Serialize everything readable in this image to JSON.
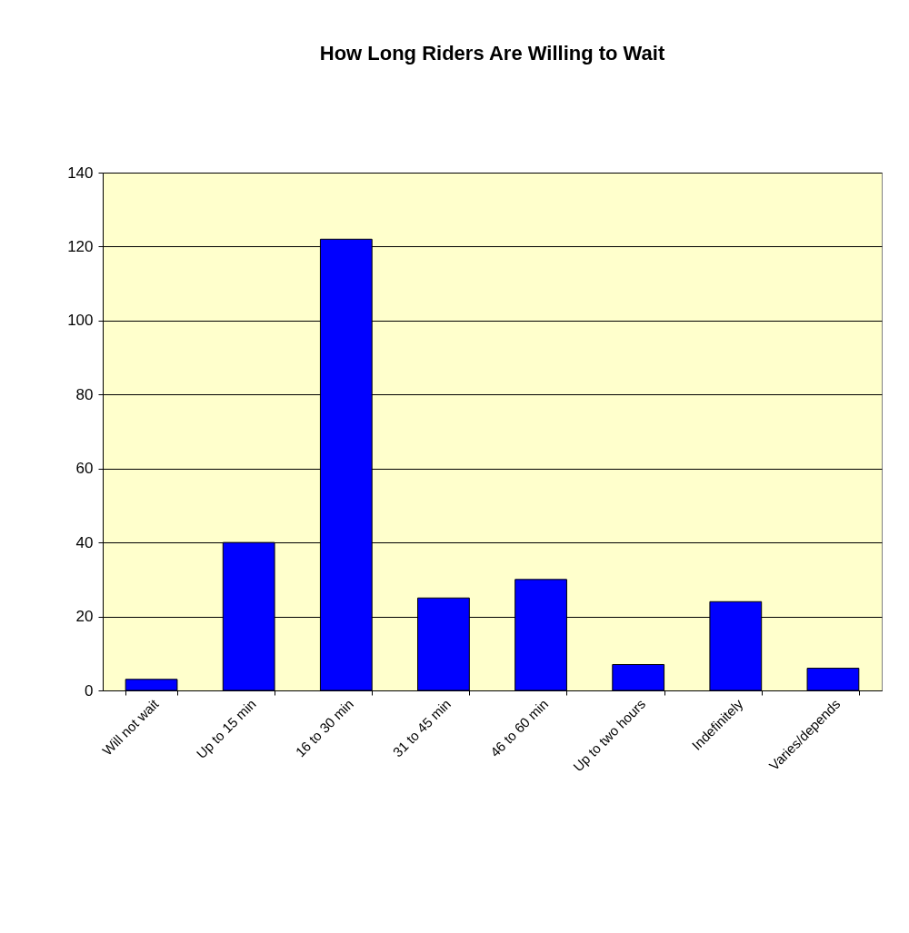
{
  "chart_data": {
    "type": "bar",
    "title": "How Long Riders Are Willing to Wait",
    "categories": [
      "Will not wait",
      "Up to 15 min",
      "16 to 30 min",
      "31 to 45 min",
      "46 to 60 min",
      "Up to two hours",
      "Indefinitely",
      "Varies/depends"
    ],
    "values": [
      3,
      40,
      122,
      25,
      30,
      7,
      24,
      6
    ],
    "color": "#0000ff",
    "ylim": [
      0,
      140
    ],
    "yticks": [
      0,
      20,
      40,
      60,
      80,
      100,
      120,
      140
    ],
    "grid": "y"
  }
}
